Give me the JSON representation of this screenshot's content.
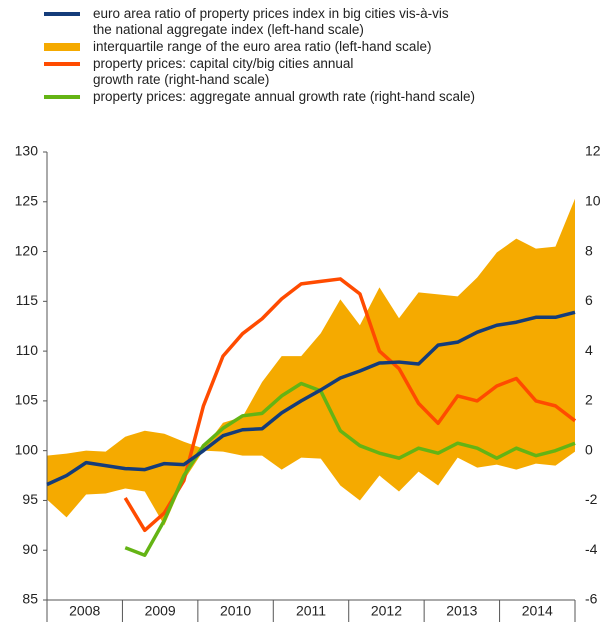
{
  "chart_data": {
    "type": "line",
    "years": [
      "2008",
      "2009",
      "2010",
      "2011",
      "2012",
      "2013",
      "2014"
    ],
    "ylim": [
      85,
      130
    ],
    "yticks": [
      85,
      90,
      95,
      100,
      105,
      110,
      115,
      120,
      125,
      130
    ],
    "y2lim": [
      -6,
      12
    ],
    "y2ticks": [
      -6,
      -4,
      -2,
      0,
      2,
      4,
      6,
      8,
      10,
      12
    ],
    "series": [
      {
        "name": "euro area ratio of property prices index in big cities vis-à-vis\nthe national aggregate index (left-hand scale)",
        "color": "#143c7a",
        "values": [
          96.6,
          97.5,
          98.8,
          98.5,
          98.2,
          98.1,
          98.7,
          98.6,
          100.0,
          101.5,
          102.1,
          102.2,
          103.8,
          105.0,
          106.1,
          107.3,
          108.0,
          108.8,
          108.9,
          108.7,
          110.6,
          110.9,
          111.9,
          112.6,
          112.9,
          113.4,
          113.4,
          113.9
        ]
      },
      {
        "name": "interquartile range of the euro area ratio (left-hand scale)",
        "color": "#f5aa00",
        "band": true,
        "upper": [
          99.5,
          99.7,
          100.0,
          99.9,
          101.4,
          102.0,
          101.7,
          100.9,
          100.2,
          102.8,
          103.4,
          106.9,
          109.5,
          109.5,
          111.8,
          115.2,
          112.6,
          116.4,
          113.3,
          115.9,
          115.7,
          115.5,
          117.4,
          119.9,
          121.3,
          120.3,
          120.5,
          125.3
        ],
        "lower": [
          95.1,
          93.3,
          95.6,
          95.7,
          96.2,
          95.9,
          92.5,
          97.0,
          100.0,
          99.9,
          99.5,
          99.5,
          98.1,
          99.3,
          99.2,
          96.5,
          95.0,
          97.5,
          95.9,
          97.9,
          96.5,
          99.3,
          98.3,
          98.6,
          98.1,
          98.7,
          98.5,
          99.9
        ]
      },
      {
        "name": "property prices: capital city/big cities annual\ngrowth rate (right-hand scale)",
        "color": "#ff4b00",
        "axis": "y2",
        "values": [
          null,
          null,
          null,
          null,
          -1.9,
          -3.2,
          -2.5,
          -1.2,
          1.8,
          3.8,
          4.7,
          5.3,
          6.1,
          6.7,
          6.8,
          6.9,
          6.3,
          4.0,
          3.3,
          1.9,
          1.1,
          2.2,
          2.0,
          2.6,
          2.9,
          2.0,
          1.8,
          1.2
        ]
      },
      {
        "name": "property prices: aggregate annual growth rate (right-hand scale)",
        "color": "#64b414",
        "axis": "y2",
        "values": [
          null,
          null,
          null,
          null,
          -3.9,
          -4.2,
          -2.8,
          -1.0,
          0.2,
          0.9,
          1.4,
          1.5,
          2.2,
          2.7,
          2.4,
          0.8,
          0.2,
          -0.1,
          -0.3,
          0.1,
          -0.1,
          0.3,
          0.1,
          -0.3,
          0.1,
          -0.2,
          0.0,
          0.3
        ]
      }
    ]
  }
}
